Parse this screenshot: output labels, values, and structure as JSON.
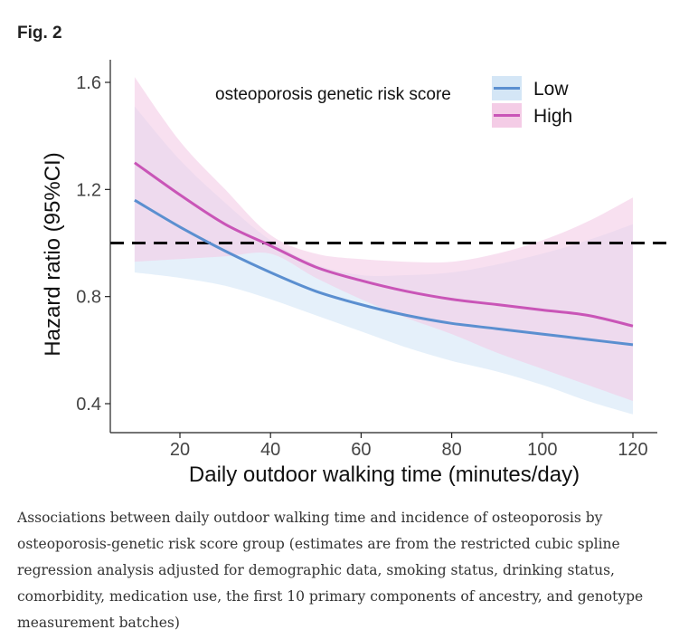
{
  "figure": {
    "label": "Fig. 2",
    "caption": "Associations between daily outdoor walking time and incidence of osteoporosis by osteoporosis-genetic risk score group (estimates are from the restricted cubic spline regression analysis adjusted for demographic data, smoking status, drinking status, comorbidity, medication use, the first 10 primary components of ancestry, and genotype measurement batches)"
  },
  "chart_data": {
    "type": "line",
    "xlabel": "Daily outdoor walking time (minutes/day)",
    "ylabel": "Hazard ratio (95%CI)",
    "xlim": [
      5,
      125
    ],
    "ylim": [
      0.31,
      1.66
    ],
    "xticks": [
      20,
      40,
      60,
      80,
      100,
      120
    ],
    "yticks": [
      0.4,
      0.8,
      1.2,
      1.6
    ],
    "ytick_labels": [
      "0.4",
      "0.8",
      "1.2",
      "1.6"
    ],
    "reference_line": 1.0,
    "legend_title": "osteoporosis genetic risk score",
    "x": [
      10,
      20,
      30,
      40,
      50,
      60,
      70,
      80,
      90,
      100,
      110,
      120
    ],
    "series": [
      {
        "name": "Low",
        "color": "#5b8fd0",
        "band_color": "#d4e6f6",
        "values": [
          1.16,
          1.06,
          0.97,
          0.89,
          0.82,
          0.77,
          0.73,
          0.7,
          0.68,
          0.66,
          0.64,
          0.62
        ],
        "lower": [
          0.89,
          0.87,
          0.84,
          0.79,
          0.73,
          0.67,
          0.61,
          0.56,
          0.52,
          0.47,
          0.41,
          0.36
        ],
        "upper": [
          1.51,
          1.31,
          1.15,
          1.01,
          0.92,
          0.88,
          0.88,
          0.89,
          0.92,
          0.96,
          1.01,
          1.07
        ]
      },
      {
        "name": "High",
        "color": "#c955b7",
        "band_color": "#f4cce6",
        "values": [
          1.3,
          1.18,
          1.07,
          0.99,
          0.91,
          0.86,
          0.82,
          0.79,
          0.77,
          0.75,
          0.73,
          0.69
        ],
        "lower": [
          0.93,
          0.94,
          0.95,
          0.96,
          0.87,
          0.79,
          0.72,
          0.66,
          0.59,
          0.53,
          0.47,
          0.41
        ],
        "upper": [
          1.62,
          1.38,
          1.2,
          1.03,
          0.96,
          0.94,
          0.93,
          0.93,
          0.96,
          1.01,
          1.08,
          1.17
        ]
      }
    ]
  }
}
